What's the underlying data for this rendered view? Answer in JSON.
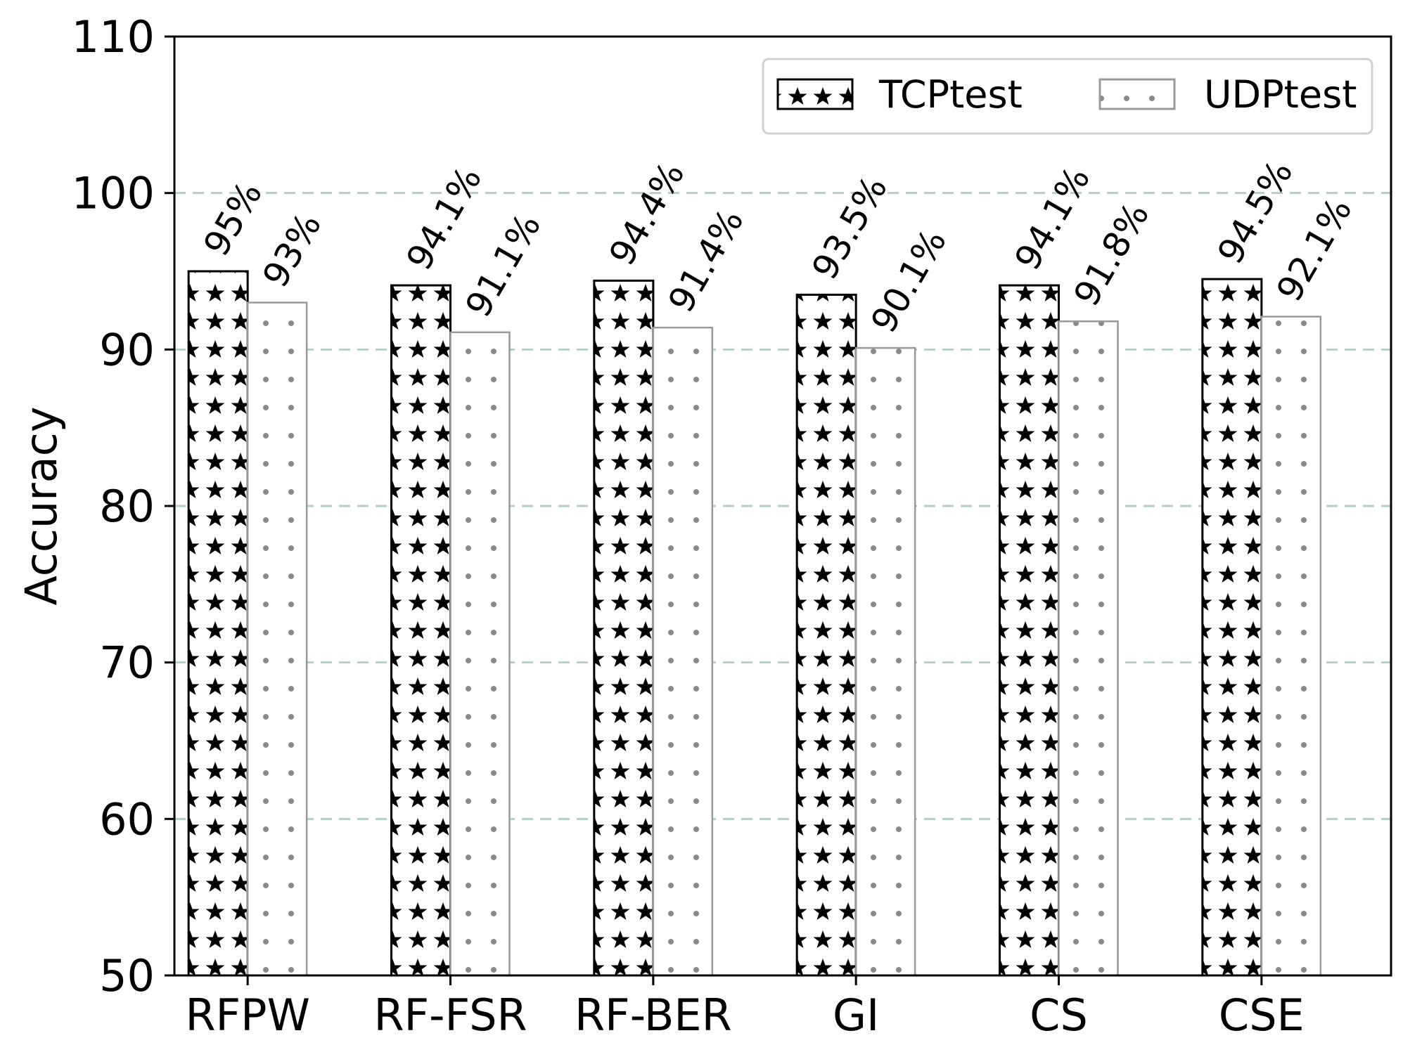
{
  "chart_data": {
    "type": "bar",
    "title": "",
    "xlabel": "",
    "ylabel": "Accuracy",
    "ylim": [
      50,
      110
    ],
    "yticks": [
      50,
      60,
      70,
      80,
      90,
      100,
      110
    ],
    "categories": [
      "RFPW",
      "RF-FSR",
      "RF-BER",
      "GI",
      "CS",
      "CSE"
    ],
    "series": [
      {
        "name": "TCPtest",
        "values": [
          95,
          94.1,
          94.4,
          93.5,
          94.1,
          94.5
        ],
        "labels": [
          "95%",
          "94.1%",
          "94.4%",
          "93.5%",
          "94.1%",
          "94.5%"
        ],
        "pattern": "stars",
        "edge_color": "#000000"
      },
      {
        "name": "UDPtest",
        "values": [
          93,
          91.1,
          91.4,
          90.1,
          91.8,
          92.1
        ],
        "labels": [
          "93%",
          "91.1%",
          "91.4%",
          "90.1%",
          "91.8%",
          "92.1%"
        ],
        "pattern": "dots",
        "edge_color": "#999999"
      }
    ],
    "grid": "horizontal dashed",
    "grid_color": "#b5cfc6",
    "legend_position": "top-right"
  }
}
